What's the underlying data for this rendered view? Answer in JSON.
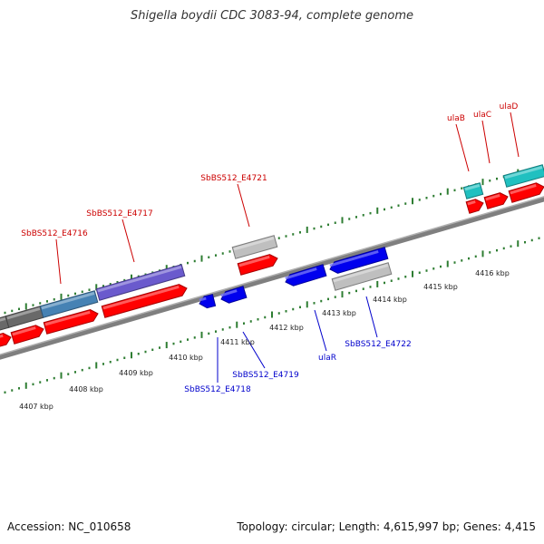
{
  "title": "Shigella boydii CDC 3083-94, complete genome",
  "footer": {
    "accession": "Accession: NC_010658",
    "stats": "Topology: circular; Length: 4,615,997 bp; Genes: 4,415"
  },
  "colors": {
    "top_label": "#cc0000",
    "bottom_label": "#0000cc",
    "forward_gene": "#ff0000",
    "reverse_gene": "#0000ee",
    "pseudo_gene": "#bfbfbf",
    "cyan_gene": "#20c0c0",
    "blue_gene": "#4682b4",
    "purple_gene": "#6a5acd",
    "dark_gene": "#696969",
    "tick": "#2e7d32",
    "backbone": "#7f7f7f"
  },
  "kbp_ticks": [
    "4407 kbp",
    "4408 kbp",
    "4409 kbp",
    "4410 kbp",
    "4411 kbp",
    "4412 kbp",
    "4413 kbp",
    "4414 kbp",
    "4415 kbp",
    "4416 kbp"
  ],
  "top_labels": [
    "SbBS512_E4716",
    "SbBS512_E4717",
    "SbBS512_E4721",
    "ulaB",
    "ulaC",
    "ulaD"
  ],
  "bottom_labels": [
    "SbBS512_E4718",
    "SbBS512_E4719",
    "ulaR",
    "SbBS512_E4722"
  ]
}
